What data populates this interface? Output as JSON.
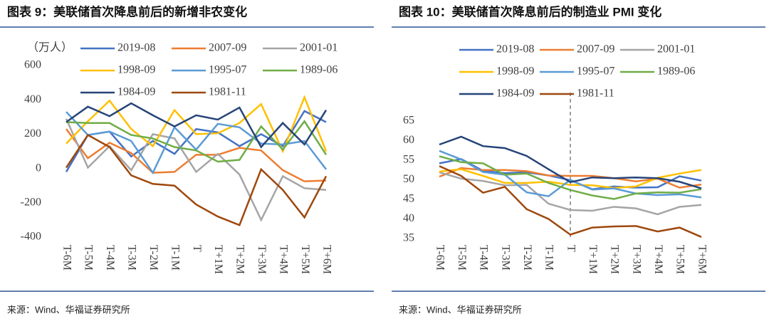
{
  "chart_data": [
    {
      "type": "line",
      "title": "图表 9：美联储首次降息前后的新增非农变化",
      "y_label": "（万人）",
      "source": "来源：Wind、华福证券研究所",
      "categories": [
        "T-6M",
        "T-5M",
        "T-4M",
        "T-3M",
        "T-2M",
        "T-1M",
        "T",
        "T+1M",
        "T+2M",
        "T+3M",
        "T+4M",
        "T+5M",
        "T+6M"
      ],
      "ylim": [
        -400,
        600
      ],
      "yticks": [
        -400,
        -200,
        0,
        200,
        400,
        600
      ],
      "grid": false,
      "series": [
        {
          "name": "2019-08",
          "color": "#4472c4",
          "values": [
            -20,
            195,
            215,
            70,
            160,
            85,
            230,
            210,
            130,
            200,
            130,
            335,
            270
          ]
        },
        {
          "name": "2007-09",
          "color": "#ed7d31",
          "values": [
            230,
            60,
            150,
            90,
            -25,
            -20,
            80,
            80,
            120,
            105,
            -10,
            -75,
            -70
          ]
        },
        {
          "name": "2001-01",
          "color": "#a5a5a5",
          "values": [
            290,
            5,
            130,
            -10,
            200,
            175,
            -20,
            85,
            -35,
            -300,
            -45,
            -115,
            -125
          ]
        },
        {
          "name": "1998-09",
          "color": "#ffc000",
          "values": [
            145,
            275,
            395,
            230,
            130,
            340,
            200,
            205,
            265,
            375,
            100,
            415,
            100
          ]
        },
        {
          "name": "1995-07",
          "color": "#5b9bd5",
          "values": [
            330,
            195,
            215,
            160,
            -25,
            240,
            110,
            260,
            240,
            145,
            140,
            160,
            -5
          ]
        },
        {
          "name": "1989-06",
          "color": "#70ad47",
          "values": [
            270,
            265,
            265,
            195,
            175,
            125,
            105,
            40,
            50,
            245,
            110,
            275,
            80
          ]
        },
        {
          "name": "1984-09",
          "color": "#264478",
          "values": [
            270,
            360,
            305,
            380,
            310,
            245,
            310,
            285,
            355,
            125,
            265,
            140,
            340
          ]
        },
        {
          "name": "1981-11",
          "color": "#9e480e",
          "values": [
            5,
            195,
            125,
            -40,
            -90,
            -100,
            -210,
            -280,
            -330,
            -5,
            -125,
            -285,
            -45
          ]
        }
      ]
    },
    {
      "type": "line",
      "title": "图表 10：美联储首次降息前后的制造业 PMI 变化",
      "source": "来源：Wind、华福证券研究所",
      "categories": [
        "T-6M",
        "T-5M",
        "T-4M",
        "T-3M",
        "T-2M",
        "T-1M",
        "T",
        "T+1M",
        "T+2M",
        "T+3M",
        "T+4M",
        "T+5M",
        "T+6M"
      ],
      "ylim": [
        35,
        65
      ],
      "yticks": [
        35,
        40,
        45,
        50,
        55,
        60,
        65
      ],
      "grid": false,
      "vline": "T",
      "series": [
        {
          "name": "2019-08",
          "color": "#4472c4",
          "values": [
            54.2,
            55.3,
            52.3,
            51.7,
            51.9,
            51.1,
            49.9,
            47.6,
            48.3,
            48.0,
            48.1,
            50.9,
            49.8
          ]
        },
        {
          "name": "2007-09",
          "color": "#ed7d31",
          "values": [
            50.8,
            53.0,
            52.5,
            52.5,
            52.2,
            51.1,
            51.0,
            51.0,
            50.4,
            49.6,
            50.3,
            48.0,
            48.8
          ]
        },
        {
          "name": "2001-01",
          "color": "#a5a5a5",
          "values": [
            51.9,
            50.3,
            49.7,
            48.6,
            48.7,
            43.9,
            42.3,
            42.1,
            43.1,
            42.7,
            41.2,
            43.1,
            43.6
          ]
        },
        {
          "name": "1998-09",
          "color": "#ffc000",
          "values": [
            52.1,
            52.7,
            51.0,
            49.2,
            49.2,
            49.5,
            48.7,
            48.6,
            47.9,
            48.3,
            50.5,
            51.6,
            52.5
          ]
        },
        {
          "name": "1995-07",
          "color": "#5b9bd5",
          "values": [
            57.4,
            55.2,
            52.0,
            51.3,
            46.8,
            45.8,
            50.0,
            47.5,
            47.8,
            46.5,
            46.1,
            46.3,
            45.5
          ]
        },
        {
          "name": "1989-06",
          "color": "#70ad47",
          "values": [
            56.0,
            54.5,
            54.2,
            51.3,
            51.6,
            49.2,
            47.4,
            46.0,
            45.1,
            46.5,
            46.8,
            46.7,
            47.6
          ]
        },
        {
          "name": "1984-09",
          "color": "#264478",
          "values": [
            59.0,
            61.0,
            58.6,
            58.1,
            56.1,
            52.7,
            49.4,
            50.6,
            50.4,
            50.6,
            50.4,
            49.5,
            47.8
          ]
        },
        {
          "name": "1981-11",
          "color": "#9e480e",
          "values": [
            53.5,
            51.0,
            46.7,
            48.2,
            42.5,
            40.0,
            36.0,
            37.8,
            38.1,
            38.2,
            36.8,
            37.8,
            35.4
          ]
        }
      ]
    }
  ]
}
